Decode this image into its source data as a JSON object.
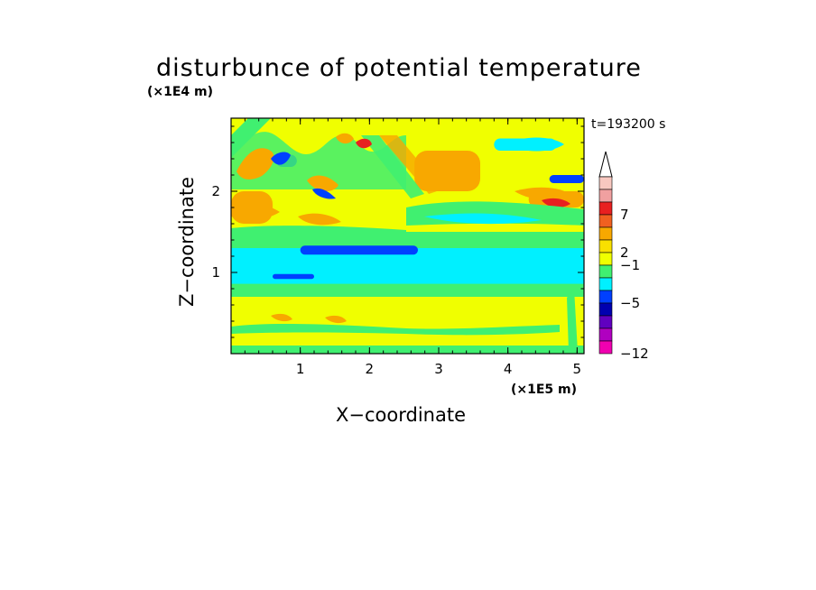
{
  "chart_data": {
    "type": "heatmap",
    "title": "disturbunce of potential temperature",
    "time_label": "t=193200 s",
    "xlabel": "X−coordinate",
    "ylabel": "Z−coordinate",
    "x_unit_label": "(×1E5 m)",
    "y_unit_label": "(×1E4 m)",
    "xlim": [
      0,
      5.1
    ],
    "ylim": [
      0,
      2.9
    ],
    "x_ticks": [
      1,
      2,
      3,
      4,
      5
    ],
    "y_ticks": [
      1,
      2
    ],
    "x_tick_labels": [
      "1",
      "2",
      "3",
      "4",
      "5"
    ],
    "y_tick_labels": [
      "1",
      "2"
    ],
    "colorbar": {
      "labeled_levels": [
        7,
        2,
        -1,
        -5,
        -12
      ],
      "labels": [
        "7",
        "2",
        "−1",
        "−5",
        "−12"
      ],
      "colors_top_to_bottom": [
        "#f8c8c0",
        "#f0a0a0",
        "#e82020",
        "#f06020",
        "#f8a800",
        "#f8e000",
        "#f0ff00",
        "#40f070",
        "#00f0ff",
        "#0040ff",
        "#0000b0",
        "#6000c0",
        "#b000c0",
        "#f000b0"
      ],
      "extend_max": true
    },
    "regions": [
      {
        "level": "-1",
        "color": "#00f0ff",
        "x": [
          0,
          5.1
        ],
        "z": [
          0.8,
          1.38
        ]
      },
      {
        "level": "1",
        "color": "#40f070",
        "x": [
          0,
          5.1
        ],
        "z": [
          1.3,
          1.5
        ]
      },
      {
        "level": "1",
        "color": "#40f070",
        "x": [
          0,
          5.1
        ],
        "z": [
          0.7,
          0.86
        ]
      },
      {
        "level": "1",
        "color": "#f0ff00",
        "x": [
          0,
          5.1
        ],
        "z": [
          0.05,
          0.7
        ]
      },
      {
        "level": "1",
        "color": "#40f070",
        "x": [
          0,
          5.1
        ],
        "z": [
          0.0,
          0.1
        ]
      },
      {
        "level": "-5",
        "color": "#0040ff",
        "x": [
          1.0,
          2.7
        ],
        "z": [
          1.22,
          1.33
        ]
      },
      {
        "level": "-5",
        "color": "#0040ff",
        "x": [
          0.6,
          1.2
        ],
        "z": [
          0.92,
          0.98
        ]
      },
      {
        "level": "1",
        "color": "#f0ff00",
        "x": [
          0,
          5.1
        ],
        "z": [
          1.5,
          2.9
        ]
      },
      {
        "level": "3",
        "color": "#f8a800",
        "x": [
          2.65,
          3.6
        ],
        "z": [
          2.0,
          2.5
        ]
      },
      {
        "level": "3",
        "color": "#f8a800",
        "x": [
          0.0,
          0.6
        ],
        "z": [
          1.6,
          2.0
        ]
      },
      {
        "level": "3",
        "color": "#f8a800",
        "x": [
          4.3,
          5.1
        ],
        "z": [
          1.8,
          2.0
        ]
      },
      {
        "level": "-1",
        "color": "#00f0ff",
        "x": [
          3.8,
          4.7
        ],
        "z": [
          2.5,
          2.65
        ]
      },
      {
        "level": "-5",
        "color": "#0040ff",
        "x": [
          0.65,
          0.95
        ],
        "z": [
          2.3,
          2.45
        ]
      },
      {
        "level": "-5",
        "color": "#0040ff",
        "x": [
          4.6,
          5.1
        ],
        "z": [
          2.1,
          2.2
        ]
      }
    ]
  }
}
